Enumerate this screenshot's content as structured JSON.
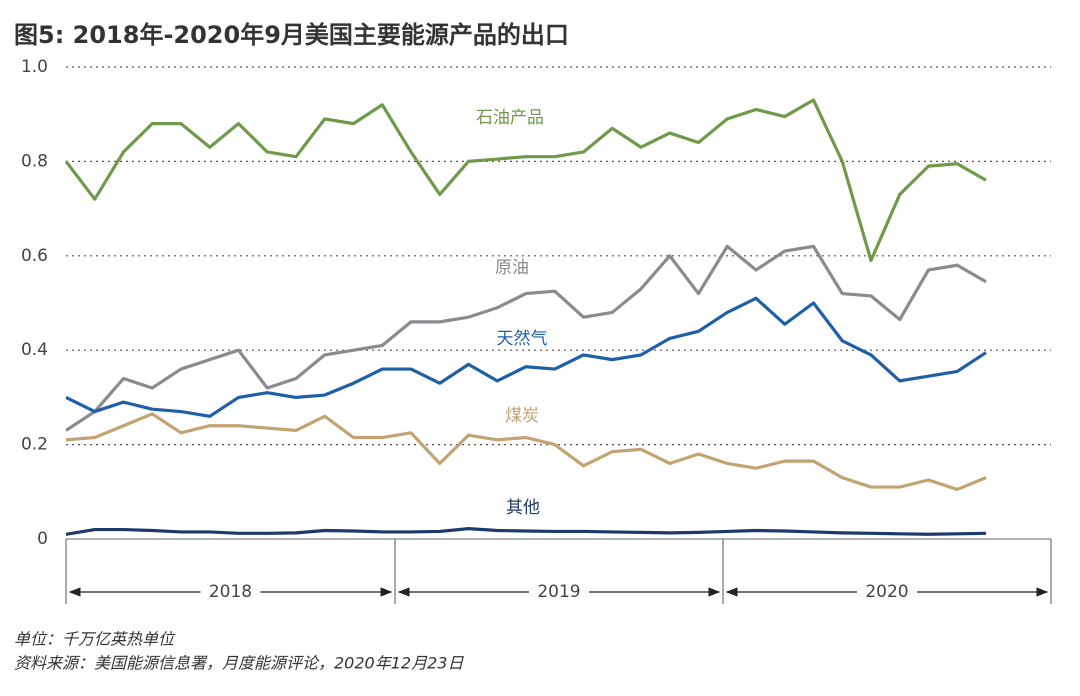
{
  "chart_data": {
    "type": "line",
    "title": "图5: 2018年-2020年9月美国主要能源产品的出口",
    "unit_note": "单位：千万亿英热单位",
    "source": "资料来源：美国能源信息署，月度能源评论，2020年12月23日",
    "years": [
      "2018",
      "2019",
      "2020"
    ],
    "categories": [
      null,
      null,
      null,
      null,
      null,
      null,
      null,
      null,
      null,
      null,
      null,
      null,
      null,
      null,
      null,
      null,
      null,
      null,
      null,
      null,
      null,
      null,
      null,
      null,
      null,
      null,
      null,
      null,
      null,
      null,
      null,
      null,
      null
    ],
    "ylim": [
      0,
      1
    ],
    "yticks": [
      0,
      0.2,
      0.4,
      0.6,
      0.8,
      {
        "value": 1,
        "label": "1.0"
      }
    ],
    "grid": true,
    "series": [
      {
        "name": "石油产品",
        "color": "#6f9a4a",
        "values": [
          0.8,
          0.72,
          0.82,
          0.88,
          0.88,
          0.83,
          0.88,
          0.82,
          0.81,
          0.89,
          0.88,
          0.92,
          0.82,
          0.73,
          0.8,
          0.805,
          0.81,
          0.81,
          0.82,
          0.87,
          0.83,
          0.86,
          0.84,
          0.89,
          0.91,
          0.895,
          0.93,
          0.8,
          0.59,
          0.73,
          0.79,
          0.795,
          0.76
        ]
      },
      {
        "name": "原油",
        "color": "#8a8a8f",
        "values": [
          0.23,
          0.27,
          0.34,
          0.32,
          0.36,
          0.38,
          0.4,
          0.32,
          0.34,
          0.39,
          0.4,
          0.41,
          0.46,
          0.46,
          0.47,
          0.49,
          0.52,
          0.525,
          0.47,
          0.48,
          0.53,
          0.6,
          0.52,
          0.62,
          0.57,
          0.61,
          0.62,
          0.52,
          0.515,
          0.465,
          0.57,
          0.58,
          0.545
        ]
      },
      {
        "name": "天然气",
        "color": "#1f5fa8",
        "values": [
          0.3,
          0.27,
          0.29,
          0.275,
          0.27,
          0.26,
          0.3,
          0.31,
          0.3,
          0.305,
          0.33,
          0.36,
          0.36,
          0.33,
          0.37,
          0.335,
          0.365,
          0.36,
          0.39,
          0.38,
          0.39,
          0.425,
          0.44,
          0.48,
          0.51,
          0.455,
          0.5,
          0.42,
          0.39,
          0.335,
          0.345,
          0.355,
          0.395
        ]
      },
      {
        "name": "煤炭",
        "color": "#c4a372",
        "values": [
          0.21,
          0.215,
          0.24,
          0.265,
          0.225,
          0.24,
          0.24,
          0.235,
          0.23,
          0.26,
          0.215,
          0.215,
          0.225,
          0.16,
          0.22,
          0.21,
          0.215,
          0.2,
          0.155,
          0.185,
          0.19,
          0.16,
          0.18,
          0.16,
          0.15,
          0.165,
          0.165,
          0.13,
          0.11,
          0.11,
          0.125,
          0.105,
          0.13
        ]
      },
      {
        "name": "其他",
        "color": "#1c3a6a",
        "values": [
          0.01,
          0.02,
          0.02,
          0.018,
          0.015,
          0.015,
          0.012,
          0.012,
          0.013,
          0.018,
          0.017,
          0.015,
          0.015,
          0.016,
          0.022,
          0.018,
          0.017,
          0.016,
          0.016,
          0.015,
          0.014,
          0.013,
          0.014,
          0.016,
          0.018,
          0.017,
          0.015,
          0.013,
          0.012,
          0.011,
          0.01,
          0.011,
          0.012
        ]
      }
    ]
  }
}
